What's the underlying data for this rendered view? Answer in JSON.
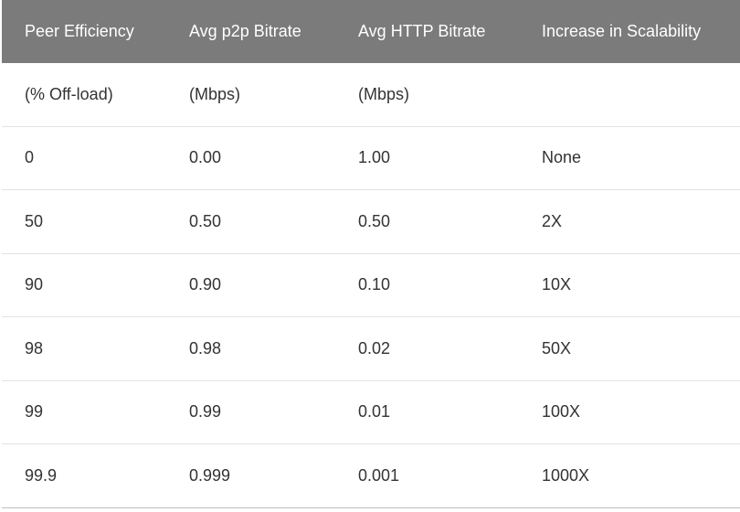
{
  "table": {
    "headers": [
      "Peer Efficiency",
      "Avg p2p Bitrate",
      "Avg HTTP Bitrate",
      "Increase in Scalability"
    ],
    "rows": [
      [
        "(% Off-load)",
        "(Mbps)",
        "(Mbps)",
        ""
      ],
      [
        "0",
        "0.00",
        "1.00",
        "None"
      ],
      [
        "50",
        "0.50",
        "0.50",
        "2X"
      ],
      [
        "90",
        "0.90",
        "0.10",
        "10X"
      ],
      [
        "98",
        "0.98",
        "0.02",
        "50X"
      ],
      [
        "99",
        "0.99",
        "0.01",
        "100X"
      ],
      [
        "99.9",
        "0.999",
        "0.001",
        "1000X"
      ]
    ]
  },
  "colors": {
    "header_background": "#7b7b7b",
    "header_text": "#ffffff",
    "body_text": "#333333",
    "row_divider": "#e3e3e3"
  }
}
